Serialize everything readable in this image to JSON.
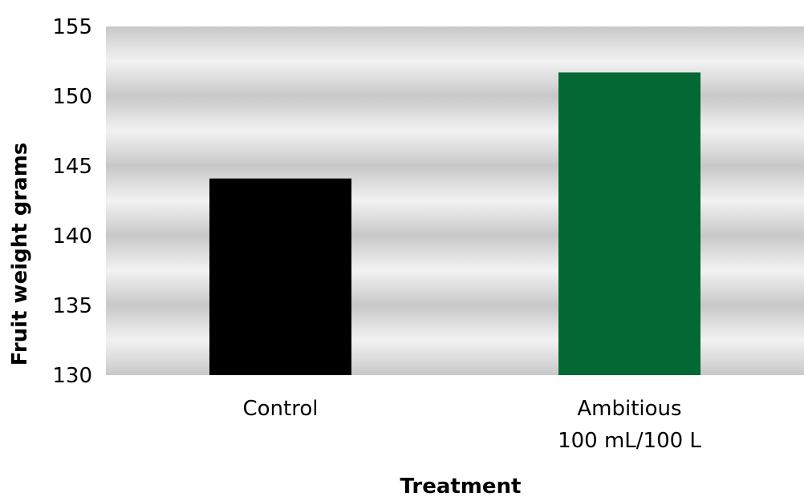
{
  "chart_data": {
    "type": "bar",
    "categories": [
      [
        "Control"
      ],
      [
        "Ambitious",
        "100 mL/100 L"
      ]
    ],
    "values": [
      144.1,
      151.7
    ],
    "bar_colors": [
      "#000000",
      "#046835"
    ],
    "title": "",
    "xlabel": "Treatment",
    "ylabel": "Fruit weight grams",
    "ylim": [
      130,
      155
    ],
    "yticks": [
      130,
      135,
      140,
      145,
      150,
      155
    ],
    "ytick_labels": [
      "130",
      "135",
      "140",
      "145",
      "150",
      "155"
    ],
    "grid": true,
    "band_colors": [
      "#c8c8c8",
      "#f2f2f2"
    ]
  }
}
